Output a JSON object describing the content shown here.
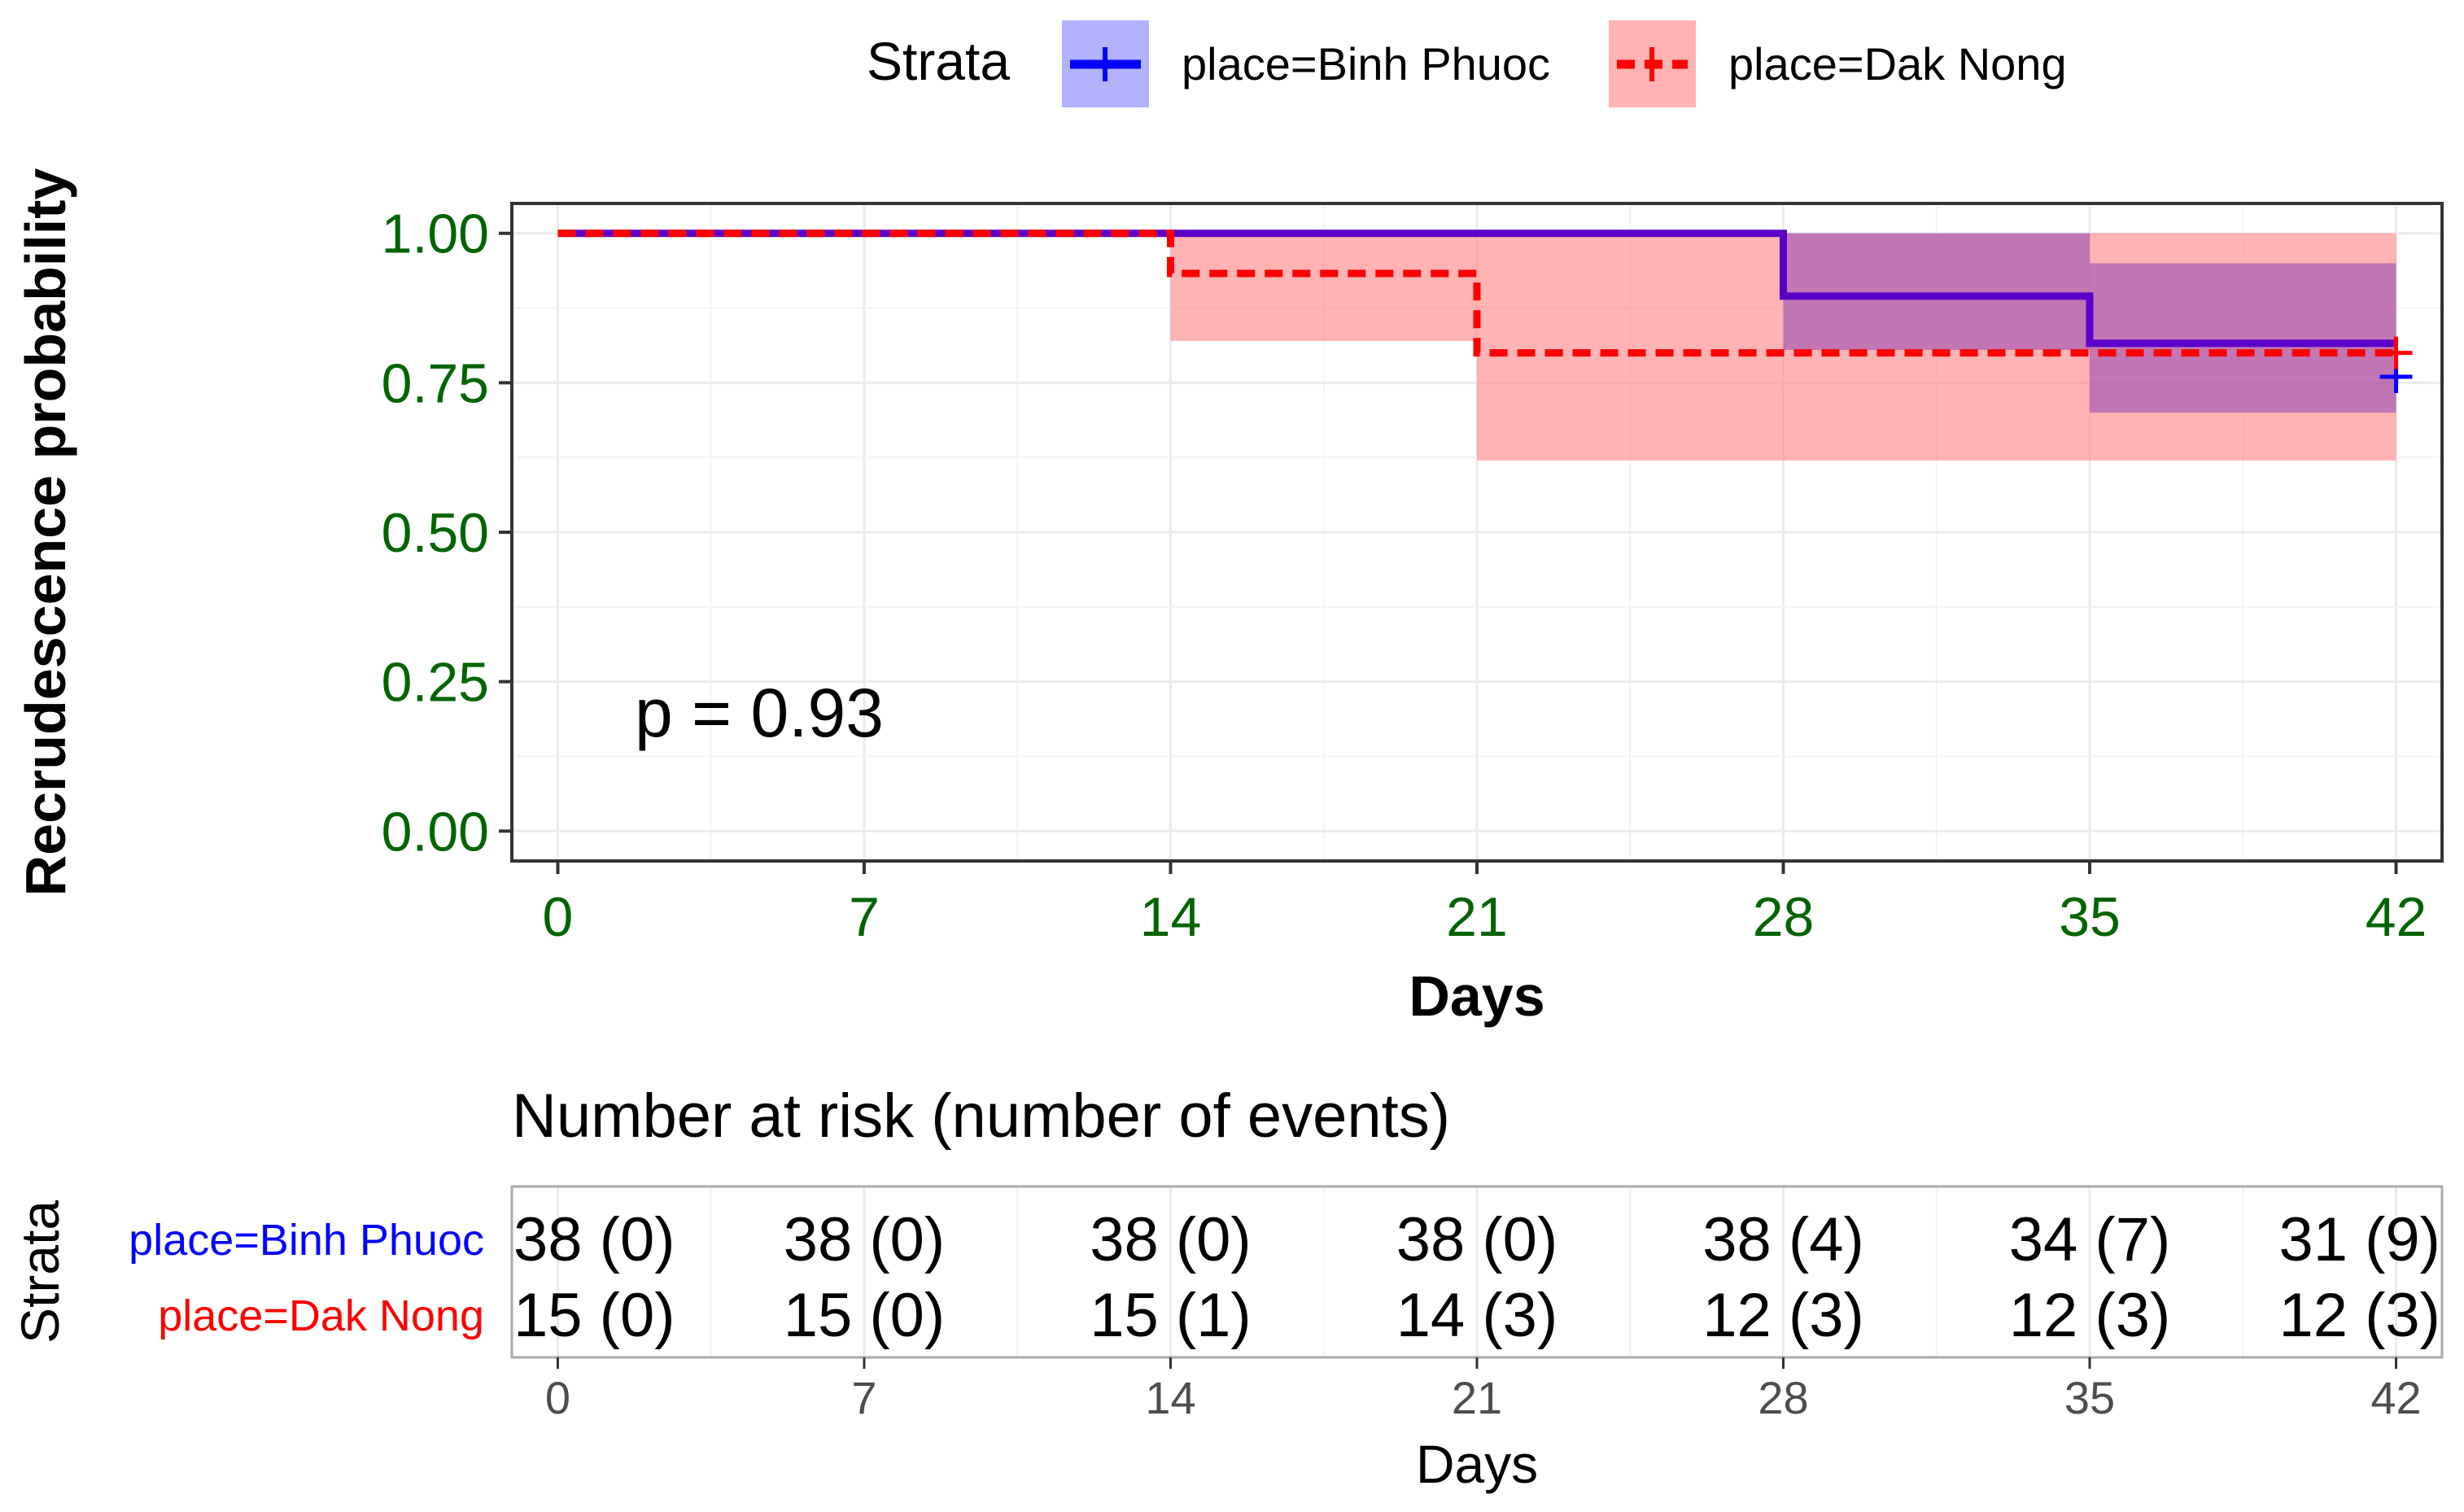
{
  "chart_data": [
    {
      "type": "line",
      "subtype": "kaplan-meier step",
      "title": "",
      "xlabel": "Days",
      "ylabel": "Recrudescence probability",
      "xlim": [
        -1.05,
        43.05
      ],
      "ylim": [
        -0.05,
        1.05
      ],
      "x_ticks": [
        "0",
        "7",
        "14",
        "21",
        "28",
        "35",
        "42"
      ],
      "y_ticks": [
        "0.00",
        "0.25",
        "0.50",
        "0.75",
        "1.00"
      ],
      "grid": true,
      "legend": {
        "title": "Strata",
        "position": "top",
        "entries": [
          "place=Binh Phuoc",
          "place=Dak Nong"
        ]
      },
      "annotation": "p = 0.93",
      "series": [
        {
          "name": "place=Binh Phuoc",
          "color": "#0000ff",
          "ci_color": "#0000ff",
          "line_style": "solid",
          "steps": [
            {
              "x0": 0,
              "x1": 28,
              "y": 1.0,
              "lo": 1.0,
              "hi": 1.0
            },
            {
              "x0": 28,
              "x1": 35,
              "y": 0.895,
              "lo": 0.805,
              "hi": 1.0
            },
            {
              "x0": 35,
              "x1": 42,
              "y": 0.816,
              "lo": 0.7,
              "hi": 0.95
            }
          ],
          "censor": {
            "x": 42,
            "y": 0.76
          }
        },
        {
          "name": "place=Dak Nong",
          "color": "#ff0000",
          "ci_color": "#ff8080",
          "line_style": "dashed",
          "steps": [
            {
              "x0": 0,
              "x1": 14,
              "y": 1.0,
              "lo": 1.0,
              "hi": 1.0
            },
            {
              "x0": 14,
              "x1": 21,
              "y": 0.933,
              "lo": 0.82,
              "hi": 1.0
            },
            {
              "x0": 21,
              "x1": 42,
              "y": 0.8,
              "lo": 0.62,
              "hi": 1.0
            }
          ],
          "censor": {
            "x": 42,
            "y": 0.8
          }
        }
      ]
    },
    {
      "type": "table",
      "title": "Number at risk (number of events)",
      "xlabel": "Days",
      "ylabel": "Strata",
      "x_ticks": [
        "0",
        "7",
        "14",
        "21",
        "28",
        "35",
        "42"
      ],
      "rows": [
        {
          "label": "place=Binh Phuoc",
          "color": "#0000ff",
          "cells": [
            "38 (0)",
            "38 (0)",
            "38 (0)",
            "38 (0)",
            "38 (4)",
            "34 (7)",
            "31 (9)"
          ]
        },
        {
          "label": "place=Dak Nong",
          "color": "#ff0000",
          "cells": [
            "15 (0)",
            "15 (0)",
            "15 (1)",
            "14 (3)",
            "12 (3)",
            "12 (3)",
            "12 (3)"
          ]
        }
      ]
    }
  ]
}
